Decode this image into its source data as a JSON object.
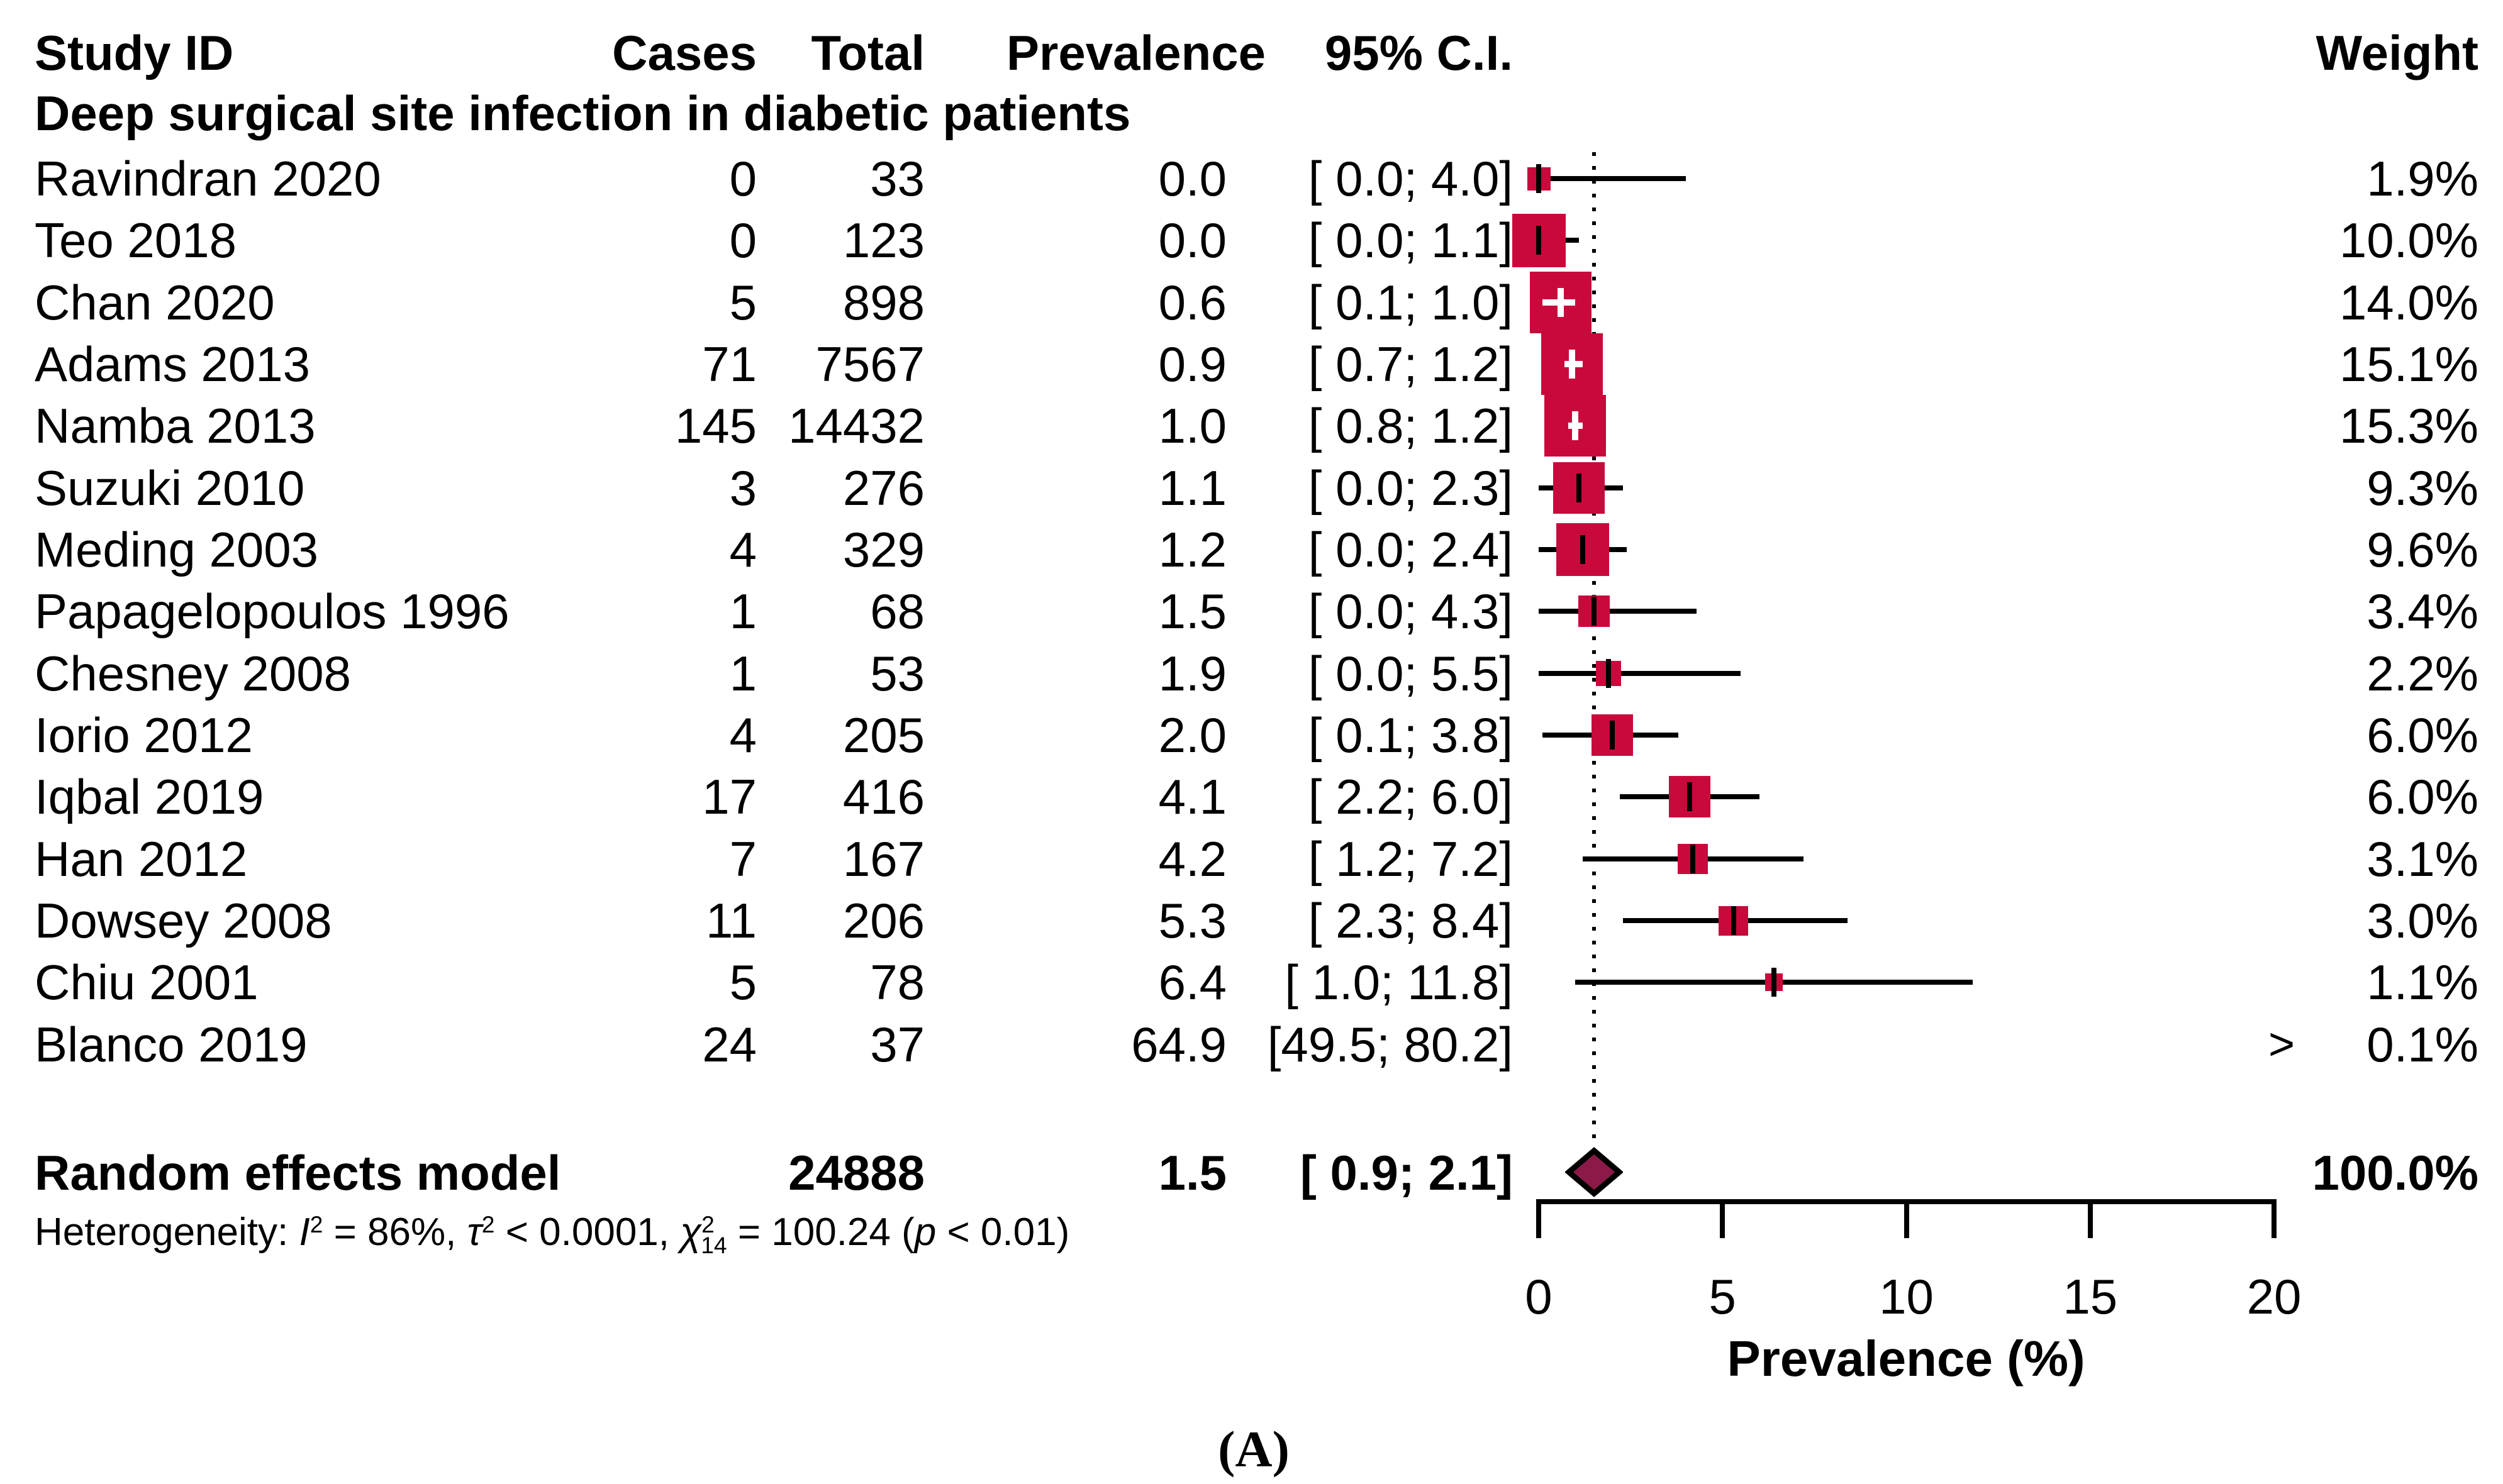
{
  "title_row": {
    "study_id": "Study ID",
    "cases": "Cases",
    "total": "Total",
    "prevalence": "Prevalence",
    "ci": "95% C.I.",
    "weight": "Weight"
  },
  "group_label": "Deep surgical site infection in diabetic patients",
  "overflow_marker": ">",
  "caption": "(A)",
  "colors": {
    "square": "#C9093C",
    "diamond": "#8B1A48",
    "line": "#000000",
    "background": "#FFFFFF"
  },
  "chart_data": {
    "type": "forest",
    "x_axis": {
      "label": "Prevalence (%)",
      "ticks": [
        0,
        5,
        10,
        15,
        20
      ],
      "range": [
        0,
        20
      ]
    },
    "effect_line_x": 1.5,
    "studies": [
      {
        "id": "Ravindran 2020",
        "cases": "0",
        "total": "33",
        "prevalence": "0.0",
        "ci_text": "[ 0.0; 4.0]",
        "est": 0.0,
        "lo": 0.0,
        "hi": 4.0,
        "weight_text": "1.9%",
        "weight": 1.9
      },
      {
        "id": "Teo 2018",
        "cases": "0",
        "total": "123",
        "prevalence": "0.0",
        "ci_text": "[ 0.0; 1.1]",
        "est": 0.0,
        "lo": 0.0,
        "hi": 1.1,
        "weight_text": "10.0%",
        "weight": 10.0
      },
      {
        "id": "Chan 2020",
        "cases": "5",
        "total": "898",
        "prevalence": "0.6",
        "ci_text": "[ 0.1; 1.0]",
        "est": 0.6,
        "lo": 0.1,
        "hi": 1.0,
        "weight_text": "14.0%",
        "weight": 14.0,
        "marker_white": true
      },
      {
        "id": "Adams 2013",
        "cases": "71",
        "total": "7567",
        "prevalence": "0.9",
        "ci_text": "[ 0.7; 1.2]",
        "est": 0.9,
        "lo": 0.7,
        "hi": 1.2,
        "weight_text": "15.1%",
        "weight": 15.1,
        "marker_white": true
      },
      {
        "id": "Namba 2013",
        "cases": "145",
        "total": "14432",
        "prevalence": "1.0",
        "ci_text": "[ 0.8; 1.2]",
        "est": 1.0,
        "lo": 0.8,
        "hi": 1.2,
        "weight_text": "15.3%",
        "weight": 15.3,
        "marker_white": true
      },
      {
        "id": "Suzuki 2010",
        "cases": "3",
        "total": "276",
        "prevalence": "1.1",
        "ci_text": "[ 0.0; 2.3]",
        "est": 1.1,
        "lo": 0.0,
        "hi": 2.3,
        "weight_text": "9.3%",
        "weight": 9.3
      },
      {
        "id": "Meding 2003",
        "cases": "4",
        "total": "329",
        "prevalence": "1.2",
        "ci_text": "[ 0.0; 2.4]",
        "est": 1.2,
        "lo": 0.0,
        "hi": 2.4,
        "weight_text": "9.6%",
        "weight": 9.6
      },
      {
        "id": "Papagelopoulos 1996",
        "cases": "1",
        "total": "68",
        "prevalence": "1.5",
        "ci_text": "[ 0.0; 4.3]",
        "est": 1.5,
        "lo": 0.0,
        "hi": 4.3,
        "weight_text": "3.4%",
        "weight": 3.4
      },
      {
        "id": "Chesney 2008",
        "cases": "1",
        "total": "53",
        "prevalence": "1.9",
        "ci_text": "[ 0.0; 5.5]",
        "est": 1.9,
        "lo": 0.0,
        "hi": 5.5,
        "weight_text": "2.2%",
        "weight": 2.2
      },
      {
        "id": "Iorio 2012",
        "cases": "4",
        "total": "205",
        "prevalence": "2.0",
        "ci_text": "[ 0.1; 3.8]",
        "est": 2.0,
        "lo": 0.1,
        "hi": 3.8,
        "weight_text": "6.0%",
        "weight": 6.0
      },
      {
        "id": "Iqbal 2019",
        "cases": "17",
        "total": "416",
        "prevalence": "4.1",
        "ci_text": "[ 2.2; 6.0]",
        "est": 4.1,
        "lo": 2.2,
        "hi": 6.0,
        "weight_text": "6.0%",
        "weight": 6.0
      },
      {
        "id": "Han 2012",
        "cases": "7",
        "total": "167",
        "prevalence": "4.2",
        "ci_text": "[ 1.2; 7.2]",
        "est": 4.2,
        "lo": 1.2,
        "hi": 7.2,
        "weight_text": "3.1%",
        "weight": 3.1
      },
      {
        "id": "Dowsey 2008",
        "cases": "11",
        "total": "206",
        "prevalence": "5.3",
        "ci_text": "[ 2.3; 8.4]",
        "est": 5.3,
        "lo": 2.3,
        "hi": 8.4,
        "weight_text": "3.0%",
        "weight": 3.0
      },
      {
        "id": "Chiu 2001",
        "cases": "5",
        "total": "78",
        "prevalence": "6.4",
        "ci_text": "[ 1.0; 11.8]",
        "est": 6.4,
        "lo": 1.0,
        "hi": 11.8,
        "weight_text": "1.1%",
        "weight": 1.1
      },
      {
        "id": "Blanco 2019",
        "cases": "24",
        "total": "37",
        "prevalence": "64.9",
        "ci_text": "[49.5; 80.2]",
        "est": 64.9,
        "lo": 49.5,
        "hi": 80.2,
        "weight_text": "0.1%",
        "weight": 0.1,
        "offscale_right": true
      }
    ],
    "summary": {
      "label": "Random effects model",
      "total": "24888",
      "prevalence": "1.5",
      "ci_text": "[ 0.9; 2.1]",
      "est": 1.5,
      "lo": 0.9,
      "hi": 2.1,
      "weight_text": "100.0%"
    },
    "heterogeneity_segments": [
      {
        "t": "Heterogeneity: "
      },
      {
        "t": "I",
        "it": true
      },
      {
        "t": "2",
        "sup": true
      },
      {
        "t": " = 86%, "
      },
      {
        "t": "τ",
        "it": true
      },
      {
        "t": "2",
        "sup": true
      },
      {
        "t": " < 0.0001, "
      },
      {
        "t": "χ",
        "it": true
      },
      {
        "t": "2",
        "sup": true
      },
      {
        "t": "14",
        "sub": true,
        "stack": true
      },
      {
        "t": " = 100.24 ("
      },
      {
        "t": "p",
        "it": true
      },
      {
        "t": " < 0.01)"
      }
    ]
  }
}
